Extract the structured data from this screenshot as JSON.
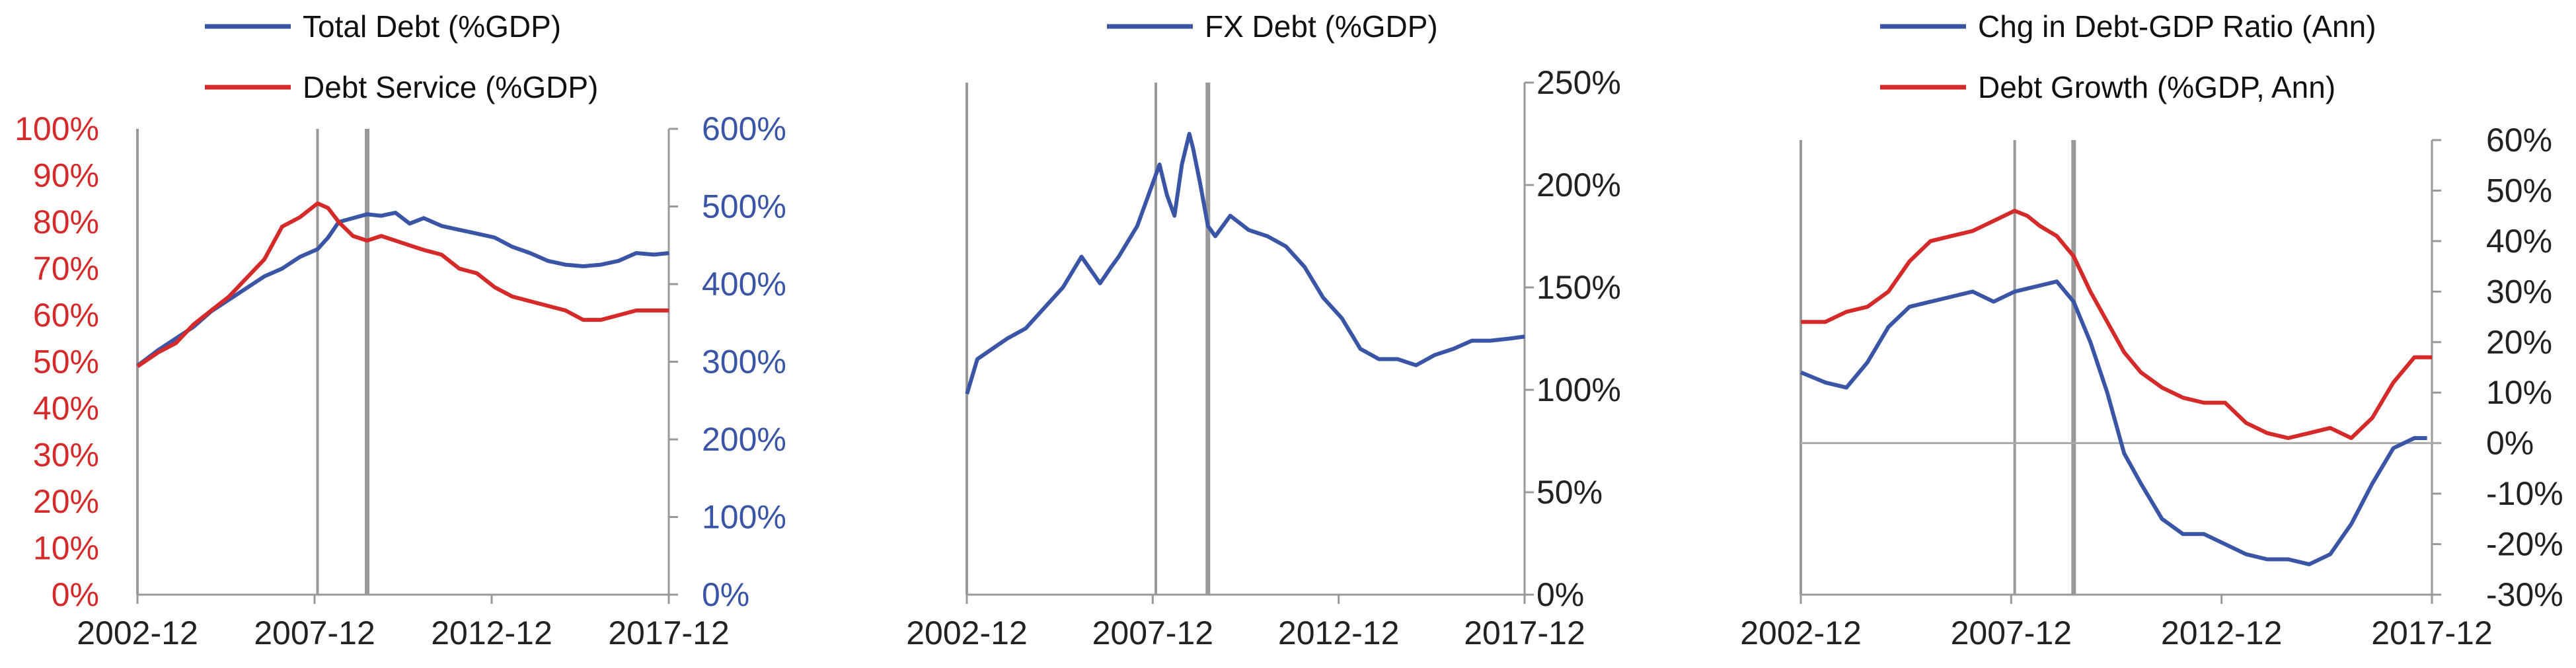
{
  "colors": {
    "blue": "#3B55A6",
    "red": "#D42A2A",
    "axis": "#999999",
    "text": "#222222"
  },
  "chart_data": [
    {
      "type": "line",
      "legend": [
        "Total Debt (%GDP)",
        "Debt Service (%GDP)"
      ],
      "x_ticks": [
        "2002-12",
        "2007-12",
        "2012-12",
        "2017-12"
      ],
      "x_range": [
        "2002-12",
        "2017-12"
      ],
      "left_axis": {
        "ticks": [
          "0%",
          "10%",
          "20%",
          "30%",
          "40%",
          "50%",
          "60%",
          "70%",
          "80%",
          "90%",
          "100%"
        ],
        "range": [
          0,
          100
        ],
        "color": "red"
      },
      "right_axis": {
        "ticks": [
          "0%",
          "100%",
          "200%",
          "300%",
          "400%",
          "500%",
          "600%"
        ],
        "range": [
          0,
          600
        ],
        "color": "blue"
      },
      "vlines": [
        2008.0,
        2009.4
      ],
      "series": [
        {
          "name": "Total Debt (%GDP)",
          "axis": "right",
          "color": "blue",
          "x": [
            2002.92,
            2003.5,
            2004.0,
            2004.5,
            2005.0,
            2005.5,
            2006.0,
            2006.5,
            2007.0,
            2007.5,
            2008.0,
            2008.3,
            2008.6,
            2009.0,
            2009.4,
            2009.8,
            2010.2,
            2010.6,
            2011.0,
            2011.5,
            2012.0,
            2012.5,
            2013.0,
            2013.5,
            2014.0,
            2014.5,
            2015.0,
            2015.5,
            2016.0,
            2016.5,
            2017.0,
            2017.5,
            2017.92
          ],
          "y": [
            295,
            315,
            330,
            345,
            365,
            380,
            395,
            410,
            420,
            435,
            445,
            460,
            480,
            485,
            490,
            488,
            492,
            478,
            485,
            475,
            470,
            465,
            460,
            448,
            440,
            430,
            425,
            423,
            425,
            430,
            440,
            438,
            440
          ]
        },
        {
          "name": "Debt Service (%GDP)",
          "axis": "left",
          "color": "red",
          "x": [
            2002.92,
            2003.5,
            2004.0,
            2004.5,
            2005.0,
            2005.5,
            2006.0,
            2006.5,
            2007.0,
            2007.5,
            2008.0,
            2008.3,
            2008.6,
            2009.0,
            2009.4,
            2009.8,
            2010.2,
            2010.6,
            2011.0,
            2011.5,
            2012.0,
            2012.5,
            2013.0,
            2013.5,
            2014.0,
            2014.5,
            2015.0,
            2015.5,
            2016.0,
            2016.5,
            2017.0,
            2017.5,
            2017.92
          ],
          "y": [
            49,
            52,
            54,
            58,
            61,
            64,
            68,
            72,
            79,
            81,
            84,
            83,
            80,
            77,
            76,
            77,
            76,
            75,
            74,
            73,
            70,
            69,
            66,
            64,
            63,
            62,
            61,
            59,
            59,
            60,
            61,
            61,
            61
          ]
        }
      ]
    },
    {
      "type": "line",
      "legend": [
        "FX Debt (%GDP)"
      ],
      "x_ticks": [
        "2002-12",
        "2007-12",
        "2012-12",
        "2017-12"
      ],
      "x_range": [
        "2002-12",
        "2017-12"
      ],
      "right_axis": {
        "ticks": [
          "0%",
          "50%",
          "100%",
          "150%",
          "200%",
          "250%"
        ],
        "range": [
          0,
          250
        ],
        "color": "text"
      },
      "vlines": [
        2008.0,
        2009.4
      ],
      "series": [
        {
          "name": "FX Debt (%GDP)",
          "axis": "right",
          "color": "blue",
          "x": [
            2002.92,
            2003.2,
            2003.6,
            2004.0,
            2004.5,
            2005.0,
            2005.5,
            2006.0,
            2006.5,
            2006.8,
            2007.0,
            2007.5,
            2007.9,
            2008.1,
            2008.3,
            2008.5,
            2008.7,
            2008.9,
            2009.0,
            2009.2,
            2009.4,
            2009.6,
            2010.0,
            2010.5,
            2011.0,
            2011.5,
            2012.0,
            2012.5,
            2013.0,
            2013.5,
            2014.0,
            2014.5,
            2015.0,
            2015.5,
            2016.0,
            2016.5,
            2017.0,
            2017.5,
            2017.92
          ],
          "y": [
            98,
            115,
            120,
            125,
            130,
            140,
            150,
            165,
            152,
            160,
            165,
            180,
            200,
            210,
            195,
            185,
            210,
            225,
            218,
            200,
            180,
            175,
            185,
            178,
            175,
            170,
            160,
            145,
            135,
            120,
            115,
            115,
            112,
            117,
            120,
            124,
            124,
            125,
            126
          ]
        }
      ]
    },
    {
      "type": "line",
      "legend": [
        "Chg in Debt-GDP Ratio (Ann)",
        "Debt Growth (%GDP, Ann)"
      ],
      "x_ticks": [
        "2002-12",
        "2007-12",
        "2012-12",
        "2017-12"
      ],
      "x_range": [
        "2002-12",
        "2017-12"
      ],
      "right_axis": {
        "ticks": [
          "-30%",
          "-20%",
          "-10%",
          "0%",
          "10%",
          "20%",
          "30%",
          "40%",
          "50%",
          "60%"
        ],
        "range": [
          -30,
          60
        ],
        "color": "text"
      },
      "vlines": [
        2008.0,
        2009.4
      ],
      "series": [
        {
          "name": "Chg in Debt-GDP Ratio (Ann)",
          "axis": "right",
          "color": "blue",
          "x": [
            2002.92,
            2003.5,
            2004.0,
            2004.5,
            2005.0,
            2005.5,
            2006.0,
            2006.5,
            2007.0,
            2007.5,
            2008.0,
            2008.5,
            2009.0,
            2009.4,
            2009.8,
            2010.2,
            2010.6,
            2011.0,
            2011.5,
            2012.0,
            2012.5,
            2013.0,
            2013.5,
            2014.0,
            2014.5,
            2015.0,
            2015.5,
            2016.0,
            2016.5,
            2017.0,
            2017.5,
            2017.8
          ],
          "y": [
            14,
            12,
            11,
            16,
            23,
            27,
            28,
            29,
            30,
            28,
            30,
            31,
            32,
            28,
            20,
            10,
            -2,
            -8,
            -15,
            -18,
            -18,
            -20,
            -22,
            -23,
            -23,
            -24,
            -22,
            -16,
            -8,
            -1,
            1,
            1
          ]
        },
        {
          "name": "Debt Growth (%GDP, Ann)",
          "axis": "right",
          "color": "red",
          "x": [
            2002.92,
            2003.5,
            2004.0,
            2004.5,
            2005.0,
            2005.5,
            2006.0,
            2006.5,
            2007.0,
            2007.5,
            2008.0,
            2008.3,
            2008.6,
            2009.0,
            2009.4,
            2009.8,
            2010.2,
            2010.6,
            2011.0,
            2011.5,
            2012.0,
            2012.5,
            2013.0,
            2013.5,
            2014.0,
            2014.5,
            2015.0,
            2015.5,
            2016.0,
            2016.5,
            2017.0,
            2017.5,
            2017.92
          ],
          "y": [
            24,
            24,
            26,
            27,
            30,
            36,
            40,
            41,
            42,
            44,
            46,
            45,
            43,
            41,
            37,
            30,
            24,
            18,
            14,
            11,
            9,
            8,
            8,
            4,
            2,
            1,
            2,
            3,
            1,
            5,
            12,
            17,
            17
          ]
        }
      ]
    }
  ]
}
